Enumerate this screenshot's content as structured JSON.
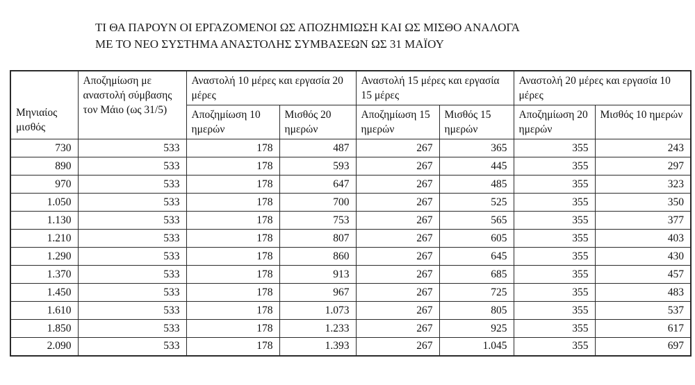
{
  "title": {
    "line1": "ΤΙ ΘΑ ΠΑΡΟΥΝ ΟΙ ΕΡΓΑΖΟΜΕΝΟΙ ΩΣ ΑΠΟΖΗΜΙΩΣΗ ΚΑΙ ΩΣ ΜΙΣΘΟ ΑΝΑΛΟΓΑ",
    "line2": "ΜΕ ΤΟ ΝΕΟ ΣΥΣΤΗΜΑ ΑΝΑΣΤΟΛΗΣ ΣΥΜΒΑΣΕΩΝ ΩΣ 31 ΜΑΪΟΥ"
  },
  "table": {
    "headers": {
      "monthly_salary": "Μηνιαίος μισθός",
      "full_suspension": "Αποζημίωση με αναστολή σύμβασης τον Μάιο (ως 31/5)"
    },
    "groups": [
      {
        "label": "Αναστολή 10 μέρες και εργασία 20 μέρες",
        "sub": [
          "Αποζημίωση 10 ημερών",
          "Μισθός 20 ημερών"
        ]
      },
      {
        "label": "Αναστολή 15 μέρες και εργασία 15 μέρες",
        "sub": [
          "Αποζημίωση 15 ημερών",
          "Μισθός 15 ημερών"
        ]
      },
      {
        "label": "Αναστολή 20 μέρες και εργασία 10 μέρες",
        "sub": [
          "Αποζημίωση 20 ημερών",
          "Μισθός 10 ημερών"
        ]
      }
    ],
    "rows": [
      [
        "730",
        "533",
        "178",
        "487",
        "267",
        "365",
        "355",
        "243"
      ],
      [
        "890",
        "533",
        "178",
        "593",
        "267",
        "445",
        "355",
        "297"
      ],
      [
        "970",
        "533",
        "178",
        "647",
        "267",
        "485",
        "355",
        "323"
      ],
      [
        "1.050",
        "533",
        "178",
        "700",
        "267",
        "525",
        "355",
        "350"
      ],
      [
        "1.130",
        "533",
        "178",
        "753",
        "267",
        "565",
        "355",
        "377"
      ],
      [
        "1.210",
        "533",
        "178",
        "807",
        "267",
        "605",
        "355",
        "403"
      ],
      [
        "1.290",
        "533",
        "178",
        "860",
        "267",
        "645",
        "355",
        "430"
      ],
      [
        "1.370",
        "533",
        "178",
        "913",
        "267",
        "685",
        "355",
        "457"
      ],
      [
        "1.450",
        "533",
        "178",
        "967",
        "267",
        "725",
        "355",
        "483"
      ],
      [
        "1.610",
        "533",
        "178",
        "1.073",
        "267",
        "805",
        "355",
        "537"
      ],
      [
        "1.850",
        "533",
        "178",
        "1.233",
        "267",
        "925",
        "355",
        "617"
      ],
      [
        "2.090",
        "533",
        "178",
        "1.393",
        "267",
        "1.045",
        "355",
        "697"
      ]
    ]
  },
  "colors": {
    "background": "#ffffff",
    "text": "#111111",
    "border": "#2a2a2a"
  }
}
